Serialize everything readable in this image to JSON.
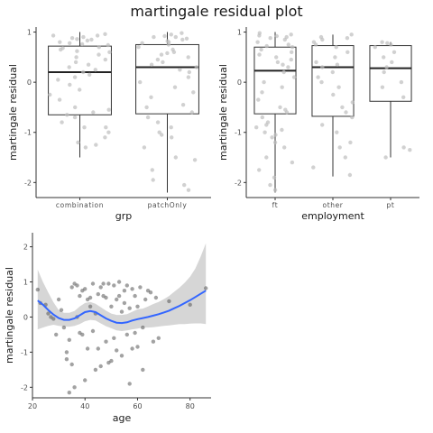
{
  "title": "martingale residual plot",
  "chart_data": [
    {
      "type": "box",
      "panel": "grp",
      "xlabel": "grp",
      "ylabel": "martingale residual",
      "ylim": [
        -2.3,
        1.1
      ],
      "yticks": [
        1,
        0,
        -1,
        -2
      ],
      "categories": [
        "combination",
        "patchOnly"
      ],
      "boxes": [
        {
          "q1": -0.65,
          "median": 0.2,
          "q3": 0.72,
          "whisker_low": -1.5,
          "whisker_high": 1.0
        },
        {
          "q1": -0.63,
          "median": 0.3,
          "q3": 0.75,
          "whisker_low": -2.2,
          "whisker_high": 1.0
        }
      ],
      "points": [
        {
          "cat": 0,
          "y": [
            0.96,
            0.93,
            0.9,
            0.88,
            0.86,
            0.83,
            0.8,
            0.78,
            0.76,
            0.74,
            0.7,
            0.65,
            0.6,
            0.55,
            0.5,
            0.45,
            0.4,
            0.35,
            0.3,
            0.25,
            0.2,
            0.15,
            0.1,
            0.05,
            -0.05,
            -0.15,
            -0.25,
            -0.35,
            -0.5,
            -0.55,
            -0.6,
            -0.65,
            -0.7,
            -0.8,
            -0.9,
            -1.0,
            -1.1,
            -1.2,
            -1.25,
            -1.3,
            -0.9,
            0.62,
            0.68,
            0.85,
            0.93
          ]
        },
        {
          "cat": 1,
          "y": [
            0.98,
            0.95,
            0.92,
            0.9,
            0.87,
            0.85,
            0.82,
            0.8,
            0.75,
            0.7,
            0.65,
            0.6,
            0.55,
            0.5,
            0.45,
            0.4,
            0.35,
            0.3,
            0.25,
            0.2,
            0.1,
            0.0,
            -0.1,
            -0.2,
            -0.3,
            -0.45,
            -0.5,
            -0.6,
            -0.7,
            -0.8,
            -0.9,
            -1.0,
            -1.05,
            -1.1,
            -1.3,
            -1.5,
            -1.55,
            -1.75,
            -1.95,
            -2.05,
            -2.15,
            0.9,
            0.78,
            0.58
          ]
        }
      ]
    },
    {
      "type": "box",
      "panel": "employment",
      "xlabel": "employment",
      "ylabel": "martingale residual",
      "ylim": [
        -2.3,
        1.1
      ],
      "yticks": [
        1,
        0,
        -1,
        -2
      ],
      "categories": [
        "ft",
        "other",
        "pt"
      ],
      "boxes": [
        {
          "q1": -0.63,
          "median": 0.23,
          "q3": 0.7,
          "whisker_low": -2.2,
          "whisker_high": 1.0
        },
        {
          "q1": -0.68,
          "median": 0.3,
          "q3": 0.73,
          "whisker_low": -1.88,
          "whisker_high": 0.95
        },
        {
          "q1": -0.38,
          "median": 0.28,
          "q3": 0.73,
          "whisker_low": -1.5,
          "whisker_high": 0.8
        }
      ],
      "points": [
        {
          "cat": 0,
          "y": [
            0.98,
            0.95,
            0.92,
            0.9,
            0.88,
            0.85,
            0.8,
            0.75,
            0.7,
            0.65,
            0.6,
            0.55,
            0.5,
            0.45,
            0.4,
            0.35,
            0.3,
            0.2,
            0.1,
            0.0,
            -0.1,
            -0.2,
            -0.35,
            -0.5,
            -0.55,
            -0.6,
            -0.7,
            -0.8,
            -0.85,
            -0.9,
            -1.0,
            -1.05,
            -1.1,
            -1.2,
            -1.3,
            -1.5,
            -1.6,
            -1.75,
            -1.9,
            -2.05,
            -2.15,
            -0.95,
            0.93,
            0.72
          ]
        },
        {
          "cat": 1,
          "y": [
            0.95,
            0.9,
            0.85,
            0.8,
            0.75,
            0.7,
            0.6,
            0.5,
            0.4,
            0.35,
            0.3,
            0.2,
            0.1,
            0.0,
            -0.1,
            -0.25,
            -0.4,
            -0.5,
            -0.6,
            -0.7,
            -0.85,
            -1.0,
            -1.2,
            -1.3,
            -1.5,
            -1.7,
            -1.85,
            0.88
          ]
        },
        {
          "cat": 2,
          "y": [
            0.8,
            0.78,
            0.75,
            0.7,
            0.6,
            0.5,
            0.4,
            0.3,
            0.2,
            0.0,
            -0.1,
            -0.3,
            -1.3,
            -1.35,
            -1.5
          ]
        }
      ]
    },
    {
      "type": "scatter",
      "panel": "age",
      "xlabel": "age",
      "ylabel": "martingale residual",
      "xlim": [
        20,
        88
      ],
      "ylim": [
        -2.3,
        2.4
      ],
      "xticks": [
        20,
        40,
        60,
        80
      ],
      "yticks": [
        2,
        1,
        0,
        -1,
        -2
      ],
      "points": [
        [
          22,
          0.78
        ],
        [
          23,
          0.4
        ],
        [
          25,
          0.35
        ],
        [
          26,
          0.1
        ],
        [
          27,
          0.0
        ],
        [
          28,
          -0.05
        ],
        [
          29,
          -0.5
        ],
        [
          30,
          0.5
        ],
        [
          31,
          0.2
        ],
        [
          32,
          -0.3
        ],
        [
          33,
          -1.0
        ],
        [
          33,
          -1.2
        ],
        [
          34,
          -0.65
        ],
        [
          34,
          -2.15
        ],
        [
          35,
          -1.35
        ],
        [
          35,
          0.85
        ],
        [
          36,
          0.95
        ],
        [
          36,
          -2.0
        ],
        [
          37,
          0.9
        ],
        [
          37,
          0.0
        ],
        [
          38,
          0.6
        ],
        [
          38,
          -0.45
        ],
        [
          39,
          0.75
        ],
        [
          39,
          -0.5
        ],
        [
          40,
          0.8
        ],
        [
          40,
          -1.8
        ],
        [
          41,
          0.5
        ],
        [
          41,
          -0.9
        ],
        [
          42,
          0.3
        ],
        [
          42,
          0.55
        ],
        [
          43,
          0.95
        ],
        [
          43,
          -0.4
        ],
        [
          44,
          0.1
        ],
        [
          44,
          -1.5
        ],
        [
          45,
          0.65
        ],
        [
          45,
          -0.9
        ],
        [
          46,
          0.85
        ],
        [
          46,
          -1.4
        ],
        [
          47,
          0.95
        ],
        [
          47,
          0.6
        ],
        [
          48,
          0.55
        ],
        [
          48,
          -0.7
        ],
        [
          49,
          0.95
        ],
        [
          49,
          -1.3
        ],
        [
          50,
          0.3
        ],
        [
          50,
          -1.25
        ],
        [
          51,
          0.9
        ],
        [
          51,
          -0.6
        ],
        [
          52,
          0.5
        ],
        [
          52,
          -0.95
        ],
        [
          53,
          0.6
        ],
        [
          53,
          1.0
        ],
        [
          54,
          0.15
        ],
        [
          54,
          -1.1
        ],
        [
          55,
          0.75
        ],
        [
          55,
          0.4
        ],
        [
          56,
          0.9
        ],
        [
          56,
          -0.5
        ],
        [
          57,
          -1.9
        ],
        [
          57,
          0.25
        ],
        [
          58,
          0.8
        ],
        [
          58,
          -0.9
        ],
        [
          59,
          -0.45
        ],
        [
          59,
          0.6
        ],
        [
          60,
          0.3
        ],
        [
          60,
          -0.85
        ],
        [
          61,
          0.85
        ],
        [
          62,
          -0.3
        ],
        [
          62,
          -1.5
        ],
        [
          63,
          0.5
        ],
        [
          64,
          0.75
        ],
        [
          65,
          0.7
        ],
        [
          66,
          -0.7
        ],
        [
          67,
          0.55
        ],
        [
          68,
          -0.6
        ],
        [
          72,
          0.45
        ],
        [
          80,
          0.35
        ],
        [
          86,
          0.82
        ]
      ],
      "smooth": {
        "x": [
          22,
          24,
          26,
          28,
          30,
          32,
          34,
          36,
          38,
          40,
          42,
          44,
          46,
          48,
          50,
          52,
          54,
          56,
          58,
          60,
          62,
          64,
          66,
          68,
          70,
          72,
          74,
          76,
          78,
          80,
          82,
          84,
          86
        ],
        "y": [
          0.47,
          0.35,
          0.2,
          0.07,
          -0.03,
          -0.08,
          -0.08,
          -0.04,
          0.05,
          0.14,
          0.17,
          0.14,
          0.05,
          -0.04,
          -0.11,
          -0.16,
          -0.17,
          -0.15,
          -0.1,
          -0.06,
          -0.03,
          0.0,
          0.04,
          0.08,
          0.13,
          0.18,
          0.25,
          0.32,
          0.4,
          0.48,
          0.57,
          0.66,
          0.75
        ],
        "lower": [
          -0.35,
          -0.3,
          -0.25,
          -0.22,
          -0.25,
          -0.27,
          -0.28,
          -0.25,
          -0.2,
          -0.12,
          -0.08,
          -0.1,
          -0.18,
          -0.26,
          -0.32,
          -0.38,
          -0.4,
          -0.38,
          -0.35,
          -0.33,
          -0.3,
          -0.3,
          -0.29,
          -0.27,
          -0.25,
          -0.24,
          -0.22,
          -0.2,
          -0.2,
          -0.19,
          -0.18,
          -0.18,
          -0.2
        ],
        "upper": [
          1.35,
          1.0,
          0.7,
          0.42,
          0.2,
          0.12,
          0.12,
          0.17,
          0.3,
          0.4,
          0.43,
          0.38,
          0.28,
          0.18,
          0.1,
          0.06,
          0.06,
          0.08,
          0.15,
          0.22,
          0.24,
          0.3,
          0.37,
          0.43,
          0.51,
          0.6,
          0.72,
          0.84,
          0.98,
          1.15,
          1.38,
          1.72,
          2.1
        ]
      }
    }
  ]
}
